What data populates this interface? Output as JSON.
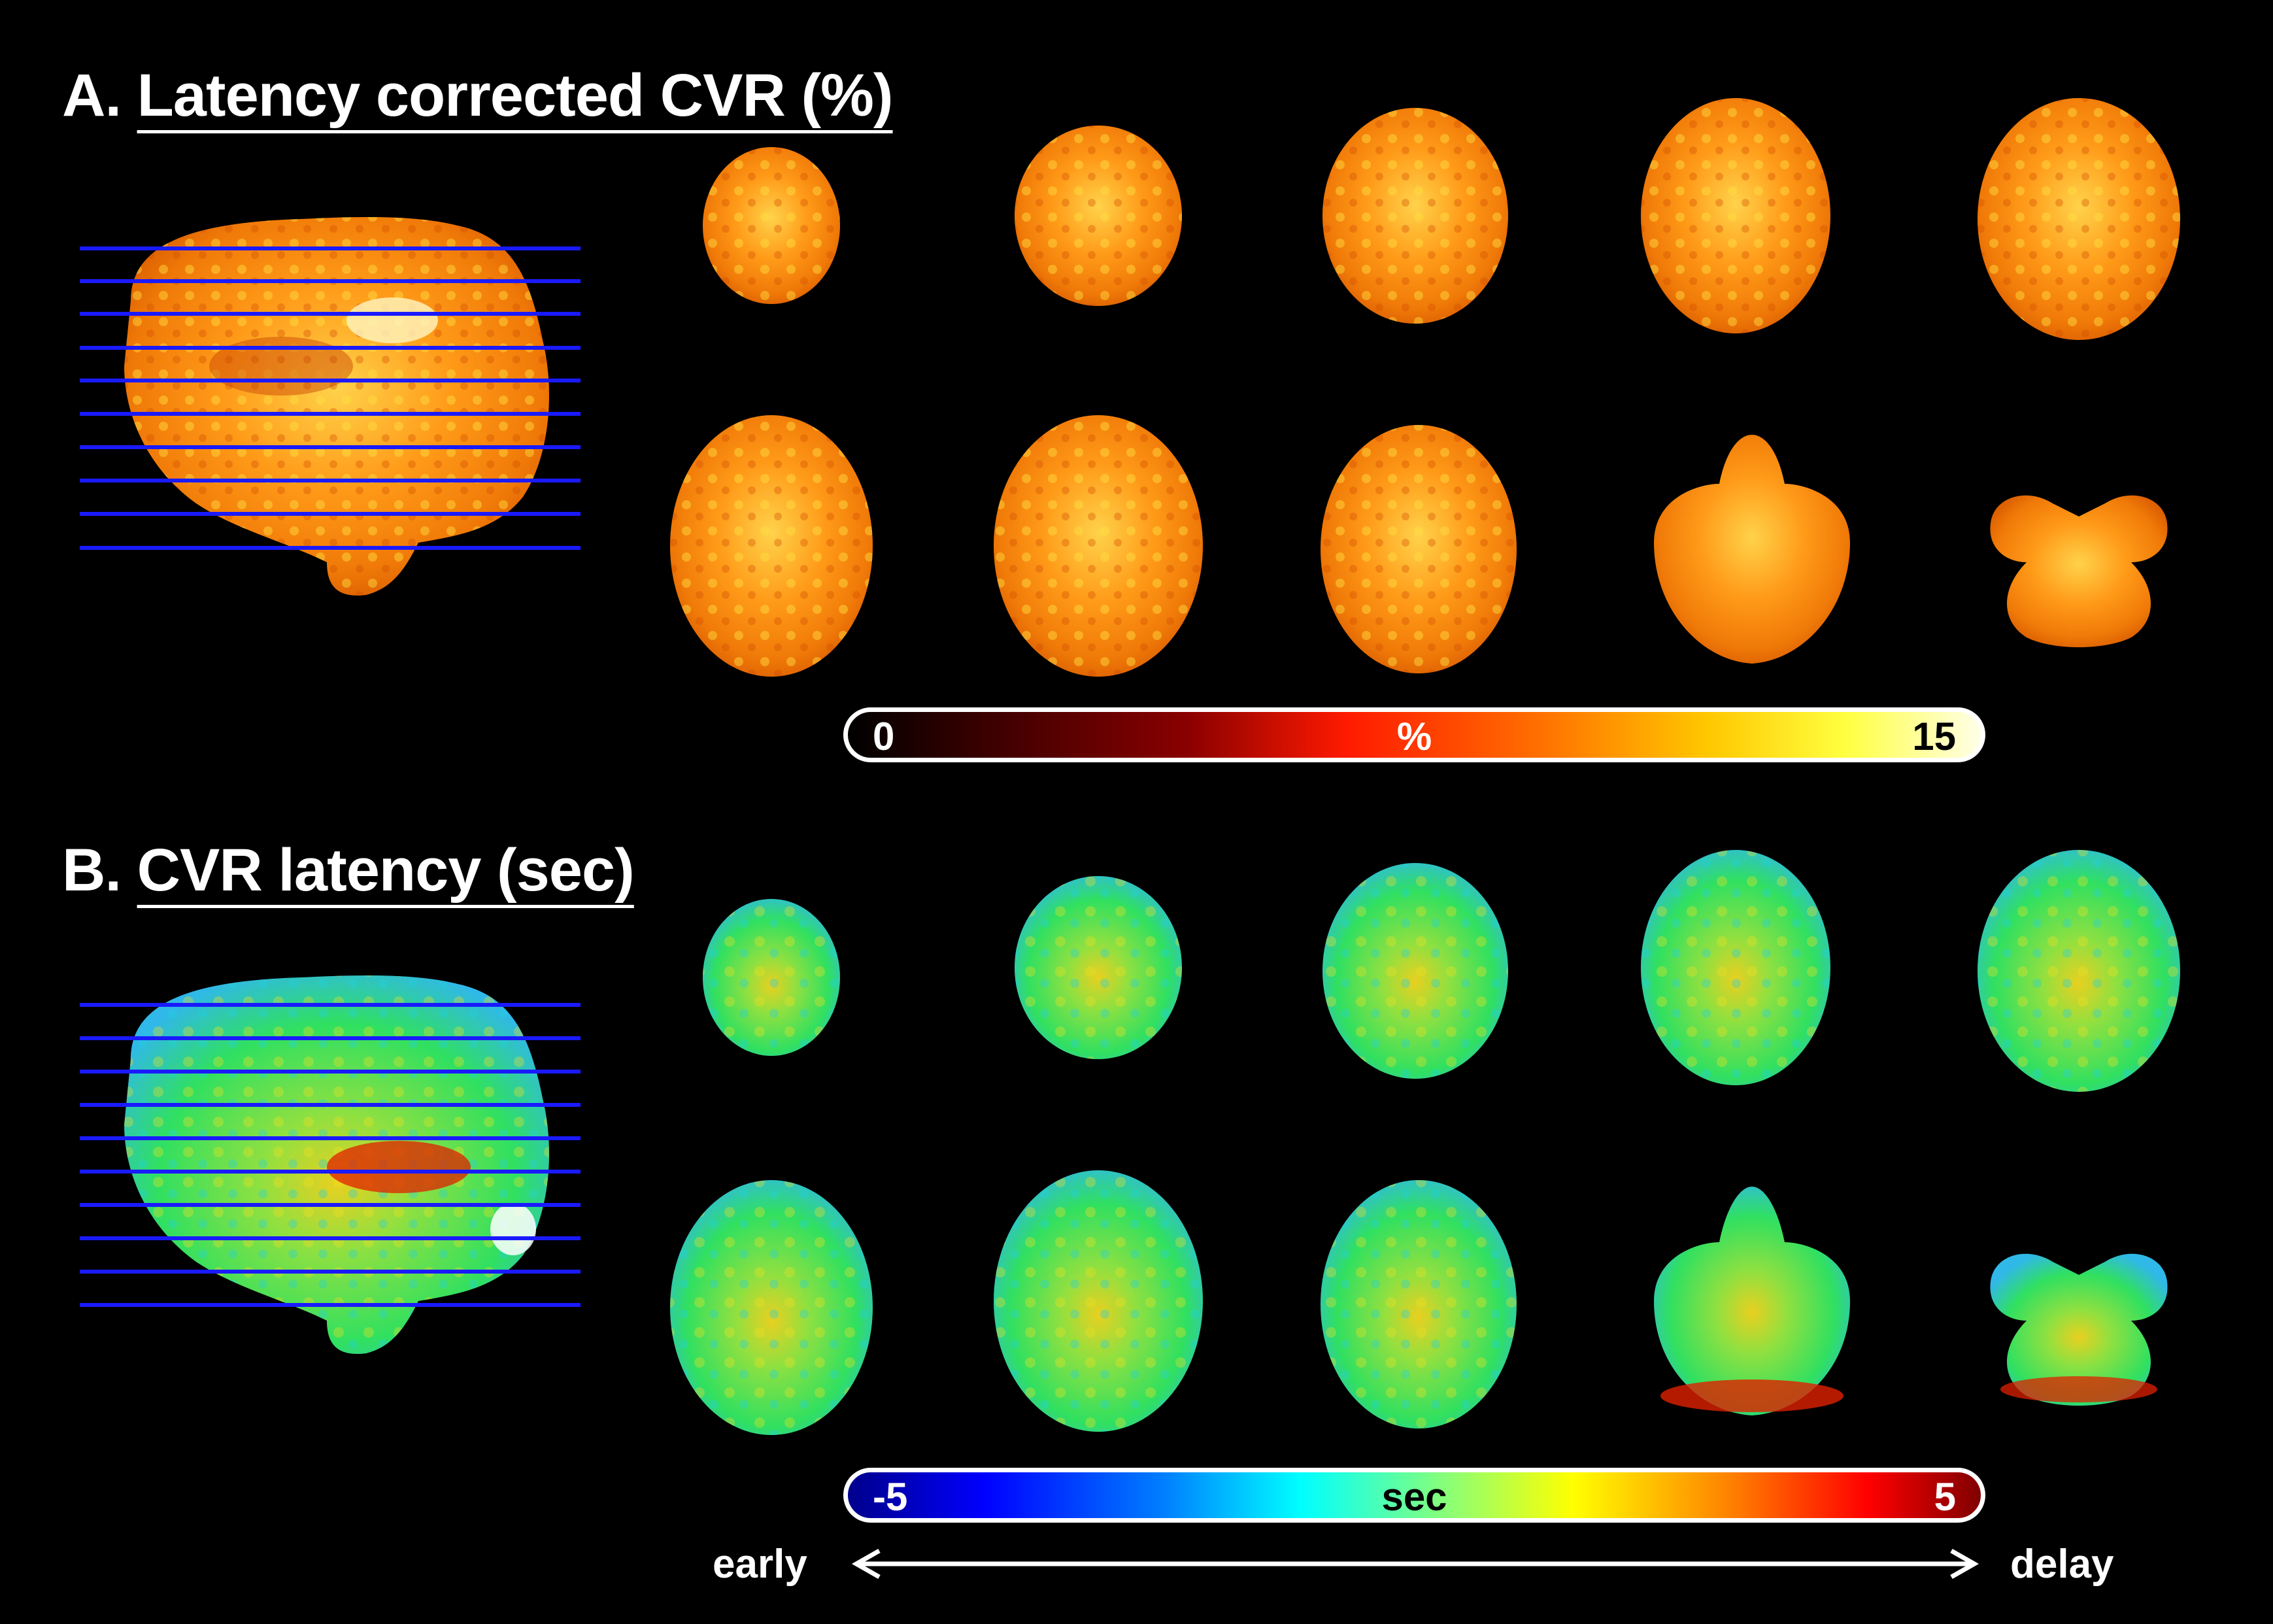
{
  "panel_a": {
    "letter": "A.",
    "title": "Latency corrected CVR (%)",
    "colorbar": {
      "min_label": "0",
      "unit_label": "%",
      "max_label": "15"
    }
  },
  "panel_b": {
    "letter": "B.",
    "title": "CVR latency (sec)",
    "colorbar": {
      "min_label": "-5",
      "unit_label": "sec",
      "max_label": "5"
    },
    "axis": {
      "left_label": "early",
      "right_label": "delay"
    }
  },
  "colors": {
    "slice_line": "#1a1aff",
    "cvr_fill": "#ff8a10",
    "latency_fill": "#40e040"
  }
}
